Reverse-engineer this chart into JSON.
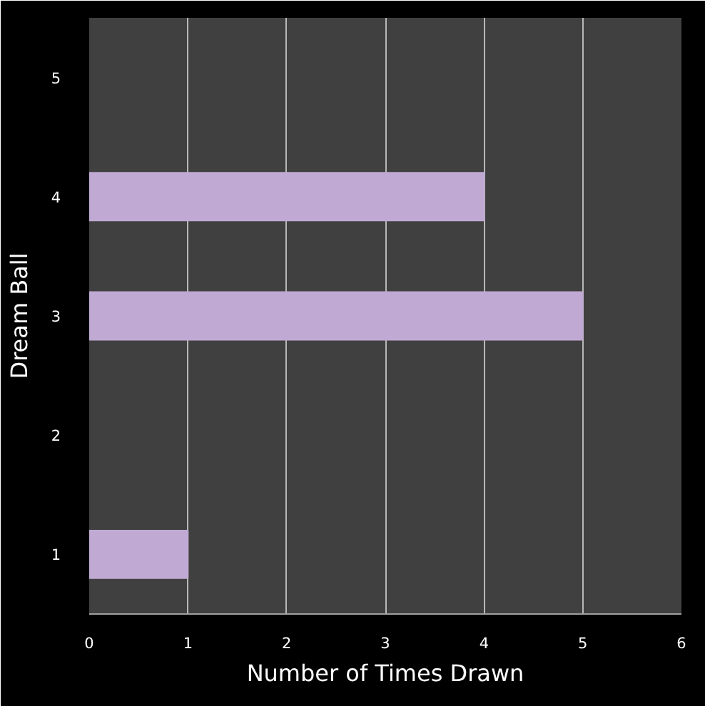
{
  "chart_data": {
    "type": "bar",
    "orientation": "horizontal",
    "categories": [
      "5",
      "4",
      "3",
      "2",
      "1"
    ],
    "values": [
      null,
      4,
      5,
      null,
      1
    ],
    "color": "#c0aad4",
    "xlim": [
      0,
      6
    ],
    "xticks": [
      0,
      1,
      2,
      3,
      4,
      5,
      6
    ],
    "xlabel": "Number of Times Drawn",
    "ylabel": "Dream Ball",
    "grid": "x"
  }
}
